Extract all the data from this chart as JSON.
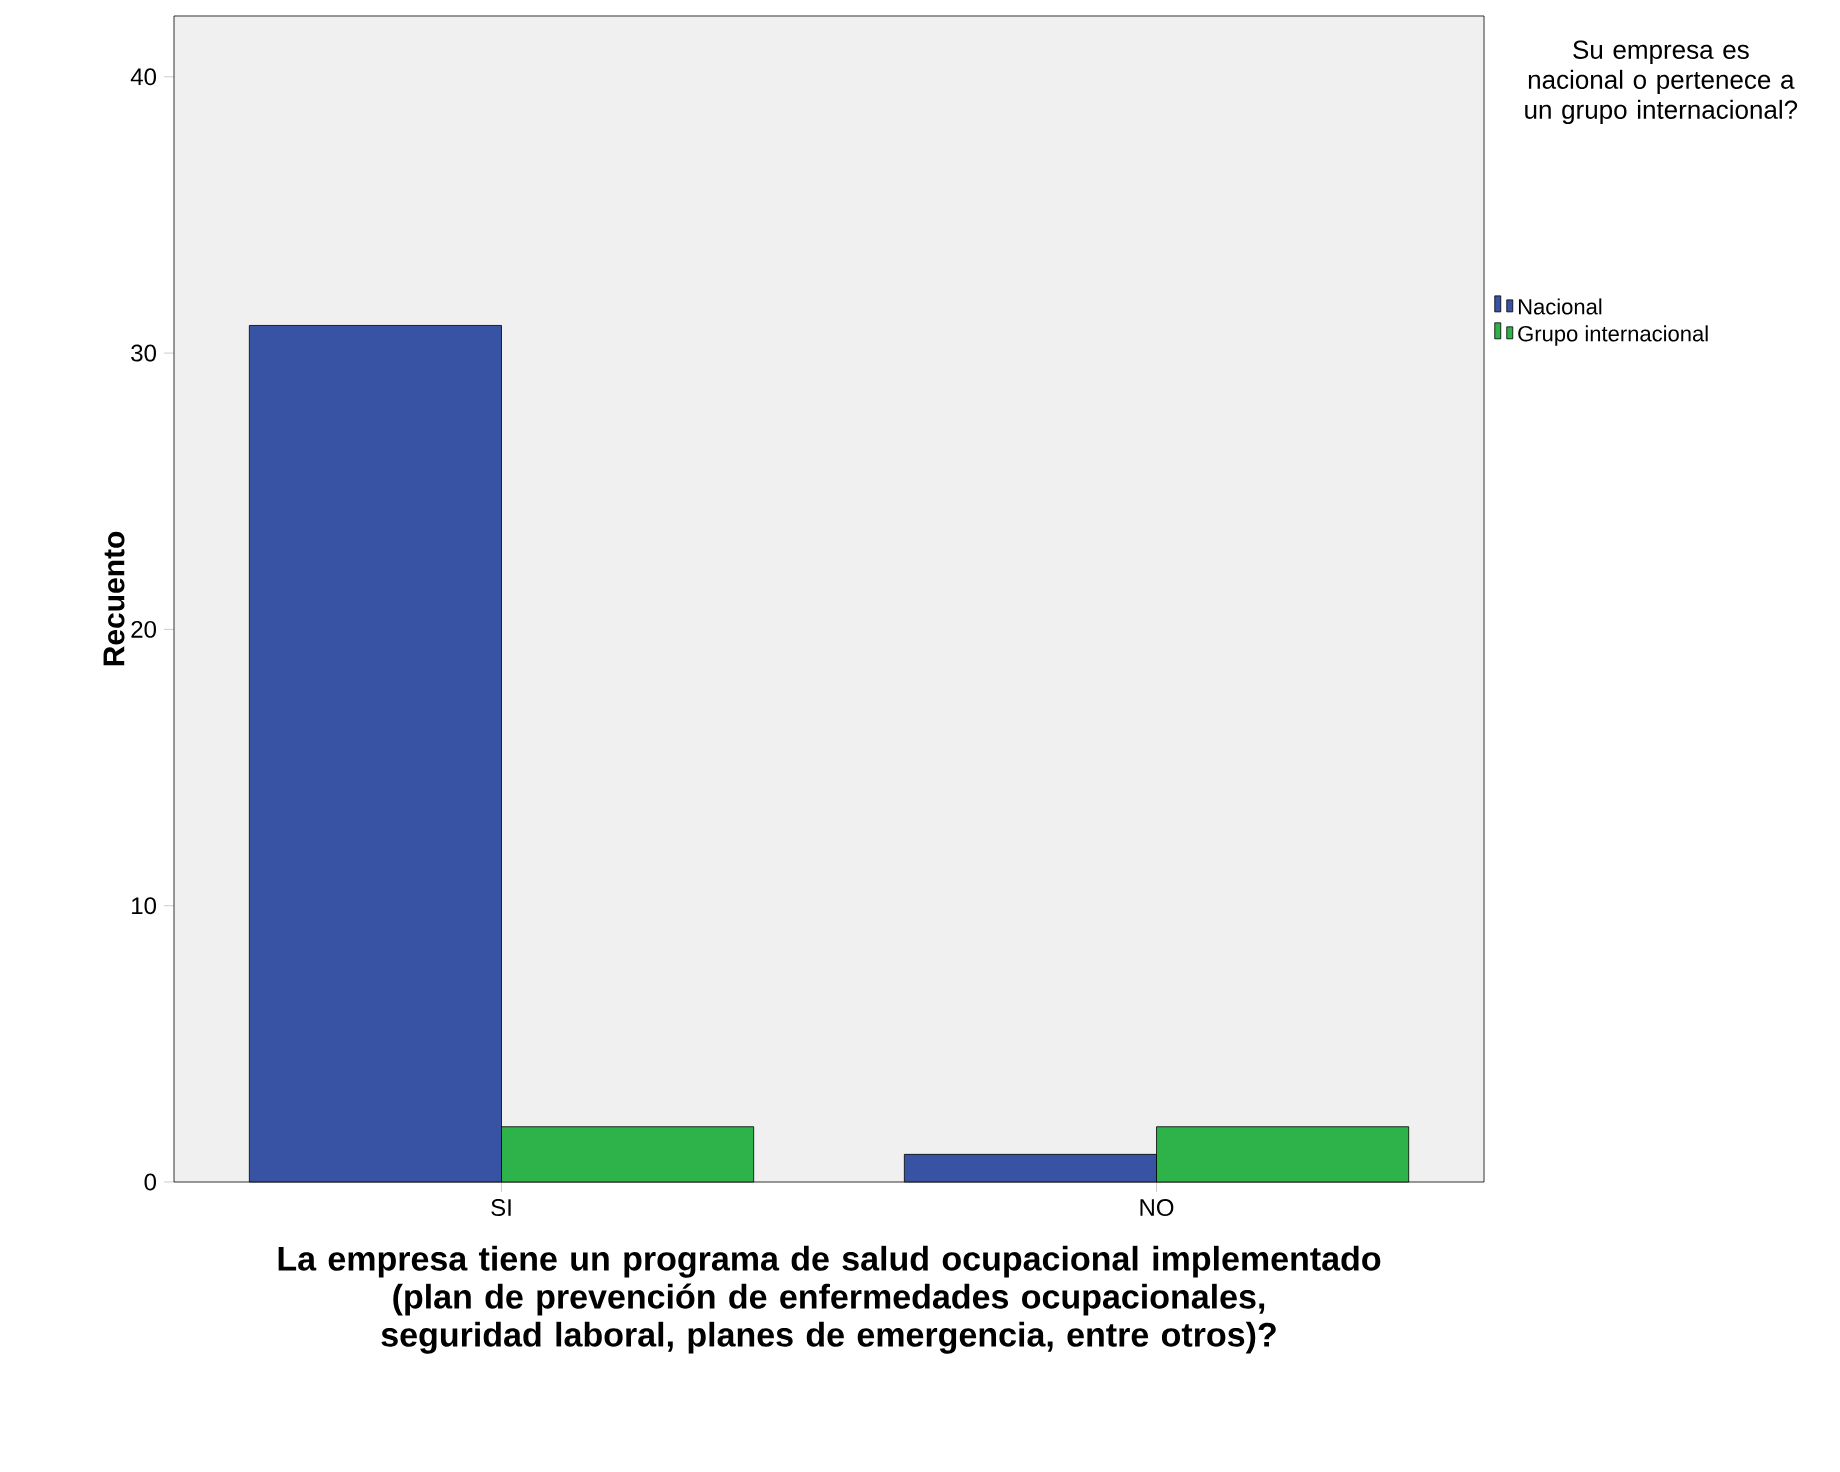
{
  "chart_data": {
    "type": "bar",
    "xlabel": "La empresa tiene un programa de salud ocupacional implementado (plan de prevención de enfermedades ocupacionales, seguridad laboral, planes de emergencia, entre otros)?",
    "ylabel": "Recuento",
    "legend_title": "Su empresa es nacional o pertenece a un grupo internacional?",
    "categories": [
      "SI",
      "NO"
    ],
    "series": [
      {
        "name": "Nacional",
        "color": "#3953a4",
        "values": [
          31,
          1
        ]
      },
      {
        "name": "Grupo internacional",
        "color": "#2db34a",
        "values": [
          2,
          2
        ]
      }
    ],
    "ylim": [
      0,
      42.2
    ],
    "yticks": [
      0,
      10,
      20,
      30,
      40
    ],
    "grid": false,
    "legend": "top right"
  }
}
